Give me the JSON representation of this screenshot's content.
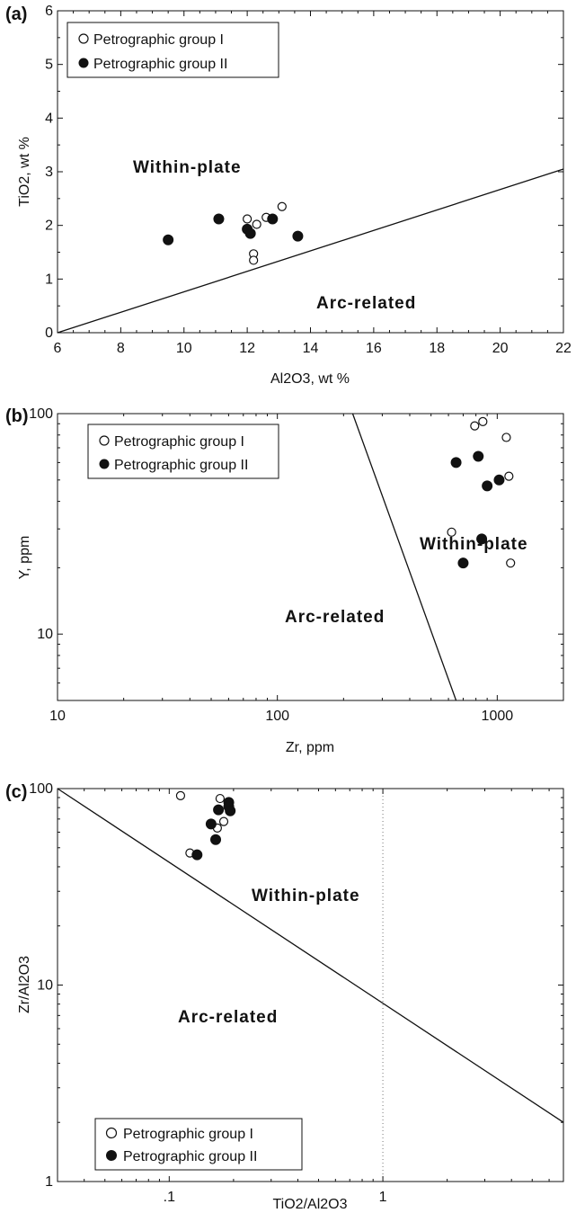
{
  "chart_data": [
    {
      "type": "scatter",
      "panel": "(a)",
      "xlabel": "Al2O3, wt %",
      "ylabel": "TiO2, wt %",
      "xscale": "linear",
      "yscale": "linear",
      "xlim": [
        6,
        22
      ],
      "ylim": [
        0,
        6
      ],
      "xticks": [
        "6",
        "8",
        "10",
        "12",
        "14",
        "16",
        "18",
        "20",
        "22"
      ],
      "yticks": [
        "0",
        "1",
        "2",
        "3",
        "4",
        "5",
        "6"
      ],
      "legend": {
        "placement": "top-left",
        "entries": [
          "Petrographic group  I",
          "Petrographic group  II"
        ]
      },
      "regions": [
        {
          "label": "Within-plate"
        },
        {
          "label": "Arc-related"
        }
      ],
      "boundary": [
        [
          6,
          0
        ],
        [
          22,
          3.05
        ]
      ],
      "series": [
        {
          "name": "Petrographic group  I",
          "marker": "open-circle",
          "points": [
            [
              12.0,
              2.12
            ],
            [
              12.3,
              2.02
            ],
            [
              12.6,
              2.15
            ],
            [
              13.1,
              2.35
            ],
            [
              12.2,
              1.47
            ],
            [
              12.2,
              1.35
            ]
          ]
        },
        {
          "name": "Petrographic group  II",
          "marker": "filled-circle",
          "points": [
            [
              9.5,
              1.73
            ],
            [
              11.1,
              2.12
            ],
            [
              12.0,
              1.93
            ],
            [
              12.1,
              1.85
            ],
            [
              12.8,
              2.12
            ],
            [
              13.6,
              1.8
            ]
          ]
        }
      ]
    },
    {
      "type": "scatter",
      "panel": "(b)",
      "xlabel": "Zr, ppm",
      "ylabel": "Y, ppm",
      "xscale": "log",
      "yscale": "log",
      "xlim": [
        10,
        2000
      ],
      "ylim": [
        5,
        100
      ],
      "xticks": [
        "10",
        "100",
        "1000"
      ],
      "yticks": [
        "10",
        "100"
      ],
      "legend": {
        "placement": "top-left",
        "entries": [
          "Petrographic group  I",
          "Petrographic group  II"
        ]
      },
      "regions": [
        {
          "label": "Within-plate"
        },
        {
          "label": "Arc-related"
        }
      ],
      "boundary": [
        [
          220,
          100
        ],
        [
          650,
          5
        ]
      ],
      "series": [
        {
          "name": "Petrographic group  I",
          "marker": "open-circle",
          "points": [
            [
              790,
              88
            ],
            [
              860,
              92
            ],
            [
              1100,
              78
            ],
            [
              1130,
              52
            ],
            [
              620,
              29
            ],
            [
              1150,
              21
            ]
          ]
        },
        {
          "name": "Petrographic group  II",
          "marker": "filled-circle",
          "points": [
            [
              650,
              60
            ],
            [
              820,
              64
            ],
            [
              900,
              47
            ],
            [
              1020,
              50
            ],
            [
              850,
              27
            ],
            [
              700,
              21
            ]
          ]
        }
      ]
    },
    {
      "type": "scatter",
      "panel": "(c)",
      "xlabel": "TiO2/Al2O3",
      "ylabel": "Zr/Al2O3",
      "xscale": "log",
      "yscale": "log",
      "xlim": [
        0.03,
        7
      ],
      "ylim": [
        1,
        100
      ],
      "xticks": [
        ".1",
        "1"
      ],
      "yticks": [
        "1",
        "10",
        "100"
      ],
      "grid": "dotted vertical line at x = 1",
      "legend": {
        "placement": "bottom-left",
        "entries": [
          "Petrographic group  I",
          "Petrographic group  II"
        ]
      },
      "regions": [
        {
          "label": "Within-plate"
        },
        {
          "label": "Arc-related"
        }
      ],
      "boundary": [
        [
          0.03,
          100
        ],
        [
          7,
          2
        ]
      ],
      "series": [
        {
          "name": "Petrographic group  I",
          "marker": "open-circle",
          "points": [
            [
              0.113,
              92
            ],
            [
              0.173,
              89
            ],
            [
              0.18,
              68
            ],
            [
              0.125,
              47
            ],
            [
              0.168,
              63
            ]
          ]
        },
        {
          "name": "Petrographic group  II",
          "marker": "filled-circle",
          "points": [
            [
              0.19,
              85
            ],
            [
              0.19,
              81
            ],
            [
              0.17,
              78
            ],
            [
              0.193,
              77
            ],
            [
              0.157,
              66
            ],
            [
              0.165,
              55
            ],
            [
              0.135,
              46
            ]
          ]
        }
      ]
    }
  ]
}
